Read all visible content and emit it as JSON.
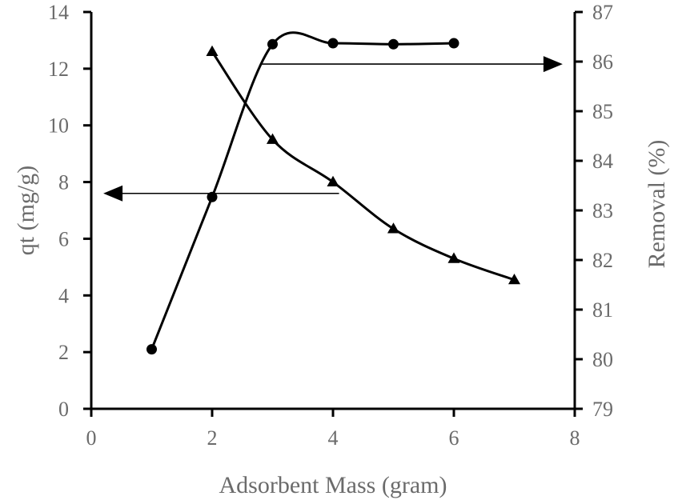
{
  "chart_data": {
    "type": "line",
    "title": "",
    "xlabel": "Adsorbent Mass (gram)",
    "ylabel_left": "qt (mg/g)",
    "ylabel_right": "Removal (%)",
    "xlim": [
      0,
      8
    ],
    "ylim_left": [
      0,
      14
    ],
    "ylim_right": [
      79,
      87
    ],
    "x_ticks": [
      0,
      2,
      4,
      6,
      8
    ],
    "y_left_ticks": [
      0,
      2,
      4,
      6,
      8,
      10,
      12,
      14
    ],
    "y_right_ticks": [
      79,
      80,
      81,
      82,
      83,
      84,
      85,
      86,
      87
    ],
    "grid": false,
    "legend": "none",
    "series": [
      {
        "name": "qt",
        "axis": "left",
        "marker": "triangle",
        "x": [
          2,
          3,
          4,
          5,
          6,
          7
        ],
        "values": [
          12.6,
          9.5,
          8.0,
          6.35,
          5.3,
          4.55
        ]
      },
      {
        "name": "Removal",
        "axis": "right",
        "marker": "circle",
        "x": [
          1,
          2,
          3,
          4,
          5,
          6
        ],
        "values": [
          80.2,
          83.27,
          86.35,
          86.37,
          86.35,
          86.37
        ]
      }
    ],
    "annotations": [
      {
        "type": "arrow",
        "direction": "left",
        "axis": "left",
        "from_x": 4.1,
        "to_x": 0.2,
        "y": 7.6,
        "meaning": "qt curve uses left axis"
      },
      {
        "type": "arrow",
        "direction": "right",
        "axis": "right",
        "from_x": 2.8,
        "to_x": 7.8,
        "y": 85.95,
        "meaning": "Removal curve uses right axis"
      }
    ],
    "colors": {
      "line": "#000000",
      "axis": "#000000",
      "text": "#6b6b6b"
    }
  }
}
